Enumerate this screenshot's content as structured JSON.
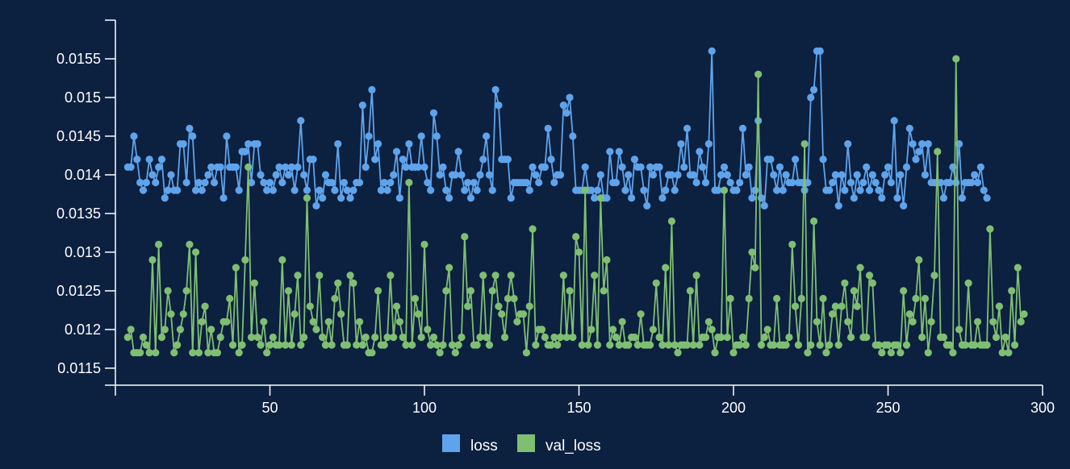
{
  "colors": {
    "background": "#0c2040",
    "axis": "#ffffff",
    "loss": "#5ea4ec",
    "val_loss": "#7fbf71"
  },
  "chart_data": {
    "type": "line",
    "markers": true,
    "grid": false,
    "legend_position": "bottom-center",
    "xlim": [
      0,
      300
    ],
    "ylim": [
      0.01135,
      0.016
    ],
    "x_ticks": [
      50,
      100,
      150,
      200,
      250,
      300
    ],
    "x_tick_labels": [
      "50",
      "100",
      "150",
      "200",
      "250",
      "300"
    ],
    "y_ticks": [
      0.0115,
      0.012,
      0.0125,
      0.013,
      0.0135,
      0.014,
      0.0145,
      0.015,
      0.0155
    ],
    "y_tick_labels": [
      "0.0115",
      "0.012",
      "0.0125",
      "0.013",
      "0.0135",
      "0.014",
      "0.0145",
      "0.015",
      "0.0155"
    ],
    "x_start": 4,
    "series": [
      {
        "name": "loss",
        "color": "#5ea4ec",
        "values": [
          0.0141,
          0.0141,
          0.0145,
          0.0142,
          0.0139,
          0.0138,
          0.0139,
          0.0142,
          0.014,
          0.0139,
          0.0141,
          0.0142,
          0.0137,
          0.0138,
          0.014,
          0.0138,
          0.0138,
          0.0144,
          0.0144,
          0.0139,
          0.0146,
          0.0145,
          0.0138,
          0.0139,
          0.0138,
          0.0139,
          0.014,
          0.0141,
          0.0139,
          0.0141,
          0.0141,
          0.0137,
          0.0145,
          0.0141,
          0.0141,
          0.0141,
          0.0138,
          0.0143,
          0.0143,
          0.0144,
          0.0139,
          0.0144,
          0.0144,
          0.014,
          0.0139,
          0.0138,
          0.0139,
          0.0138,
          0.014,
          0.0141,
          0.0139,
          0.0141,
          0.014,
          0.0141,
          0.0138,
          0.0141,
          0.0147,
          0.014,
          0.0138,
          0.0142,
          0.0142,
          0.0136,
          0.0138,
          0.0137,
          0.014,
          0.0139,
          0.0139,
          0.0138,
          0.0144,
          0.0137,
          0.0139,
          0.0138,
          0.0137,
          0.0138,
          0.0139,
          0.0139,
          0.0149,
          0.0141,
          0.0145,
          0.0151,
          0.0142,
          0.0144,
          0.0138,
          0.0139,
          0.0138,
          0.0139,
          0.014,
          0.0143,
          0.0137,
          0.0142,
          0.0141,
          0.0144,
          0.0141,
          0.0141,
          0.0141,
          0.0145,
          0.0141,
          0.0139,
          0.0138,
          0.0148,
          0.0145,
          0.014,
          0.0141,
          0.0138,
          0.0137,
          0.014,
          0.014,
          0.0143,
          0.014,
          0.0138,
          0.0139,
          0.0137,
          0.0139,
          0.0138,
          0.014,
          0.0142,
          0.0145,
          0.014,
          0.0138,
          0.0151,
          0.0149,
          0.0142,
          0.0142,
          0.0142,
          0.0137,
          0.0139,
          0.0139,
          0.0139,
          0.0139,
          0.0139,
          0.0138,
          0.0141,
          0.014,
          0.0139,
          0.0141,
          0.0141,
          0.0146,
          0.0142,
          0.0139,
          0.014,
          0.014,
          0.0149,
          0.0148,
          0.015,
          0.0145,
          0.0138,
          0.0138,
          0.0138,
          0.0141,
          0.0138,
          0.0138,
          0.0137,
          0.0138,
          0.014,
          0.0137,
          0.0137,
          0.0143,
          0.0139,
          0.0139,
          0.0143,
          0.0141,
          0.0138,
          0.014,
          0.0137,
          0.0142,
          0.0141,
          0.0141,
          0.0138,
          0.0136,
          0.0141,
          0.014,
          0.0141,
          0.0141,
          0.0137,
          0.0138,
          0.014,
          0.014,
          0.0138,
          0.014,
          0.0144,
          0.0141,
          0.0146,
          0.014,
          0.014,
          0.0139,
          0.0143,
          0.0141,
          0.0139,
          0.0144,
          0.0156,
          0.0138,
          0.0138,
          0.014,
          0.0141,
          0.014,
          0.0139,
          0.0138,
          0.0138,
          0.0139,
          0.0146,
          0.014,
          0.0141,
          0.0137,
          0.0138,
          0.0147,
          0.0137,
          0.0136,
          0.0142,
          0.0142,
          0.014,
          0.0138,
          0.0141,
          0.0138,
          0.014,
          0.0139,
          0.0139,
          0.0142,
          0.0139,
          0.0139,
          0.0138,
          0.0139,
          0.015,
          0.0151,
          0.0156,
          0.0156,
          0.0142,
          0.0138,
          0.0138,
          0.0139,
          0.014,
          0.0136,
          0.014,
          0.0138,
          0.0144,
          0.0139,
          0.0137,
          0.014,
          0.0138,
          0.0139,
          0.0141,
          0.0138,
          0.014,
          0.0139,
          0.0138,
          0.0137,
          0.014,
          0.0141,
          0.0139,
          0.0147,
          0.0137,
          0.014,
          0.0136,
          0.0141,
          0.0146,
          0.0144,
          0.0142,
          0.0143,
          0.0144,
          0.014,
          0.0144,
          0.0139,
          0.0139,
          0.0139,
          0.0139,
          0.0137,
          0.0139,
          0.0139,
          0.0141,
          0.0139,
          0.0144,
          0.0137,
          0.0139,
          0.0139,
          0.0139,
          0.014,
          0.0139,
          0.0141,
          0.0138,
          0.0137
        ]
      },
      {
        "name": "val_loss",
        "color": "#7fbf71",
        "values": [
          0.0119,
          0.012,
          0.0117,
          0.0117,
          0.0117,
          0.0119,
          0.0118,
          0.0117,
          0.0129,
          0.0117,
          0.0131,
          0.0119,
          0.012,
          0.0125,
          0.0122,
          0.0117,
          0.0118,
          0.012,
          0.0122,
          0.0125,
          0.0131,
          0.0117,
          0.013,
          0.0117,
          0.0121,
          0.0123,
          0.0117,
          0.012,
          0.0117,
          0.0117,
          0.0119,
          0.0121,
          0.0121,
          0.0124,
          0.0118,
          0.0128,
          0.0117,
          0.0118,
          0.0129,
          0.0141,
          0.0119,
          0.0126,
          0.0119,
          0.0118,
          0.0121,
          0.0117,
          0.0118,
          0.0119,
          0.0118,
          0.0118,
          0.0129,
          0.0118,
          0.0125,
          0.0118,
          0.0122,
          0.0127,
          0.0118,
          0.0119,
          0.0137,
          0.0123,
          0.0121,
          0.012,
          0.0127,
          0.0119,
          0.0118,
          0.0121,
          0.0118,
          0.0124,
          0.0126,
          0.0122,
          0.0118,
          0.0118,
          0.0127,
          0.0126,
          0.0118,
          0.0121,
          0.0118,
          0.0119,
          0.0117,
          0.0117,
          0.0119,
          0.0125,
          0.0118,
          0.0118,
          0.0119,
          0.0127,
          0.0119,
          0.0123,
          0.0121,
          0.0119,
          0.0118,
          0.0139,
          0.0118,
          0.0124,
          0.0122,
          0.0119,
          0.0131,
          0.012,
          0.0118,
          0.0119,
          0.0118,
          0.0117,
          0.0118,
          0.0125,
          0.0128,
          0.0118,
          0.0117,
          0.0118,
          0.0119,
          0.0132,
          0.0123,
          0.0125,
          0.0118,
          0.0118,
          0.0119,
          0.0127,
          0.0119,
          0.0118,
          0.0125,
          0.0127,
          0.0123,
          0.0122,
          0.0119,
          0.0124,
          0.0127,
          0.0124,
          0.0121,
          0.0122,
          0.0122,
          0.0117,
          0.0123,
          0.0133,
          0.0118,
          0.012,
          0.012,
          0.0119,
          0.0118,
          0.0118,
          0.0119,
          0.0118,
          0.0119,
          0.0127,
          0.0119,
          0.0125,
          0.0119,
          0.0132,
          0.013,
          0.0118,
          0.0138,
          0.0118,
          0.012,
          0.0127,
          0.0118,
          0.0137,
          0.0125,
          0.0129,
          0.0118,
          0.012,
          0.0119,
          0.0118,
          0.0121,
          0.0118,
          0.0118,
          0.0119,
          0.0119,
          0.0118,
          0.0122,
          0.0118,
          0.0118,
          0.0118,
          0.012,
          0.0126,
          0.0119,
          0.0118,
          0.0128,
          0.0118,
          0.0134,
          0.0118,
          0.0117,
          0.0118,
          0.0118,
          0.0118,
          0.0125,
          0.0118,
          0.0127,
          0.0118,
          0.0119,
          0.0119,
          0.0121,
          0.012,
          0.0117,
          0.0119,
          0.0119,
          0.0138,
          0.0119,
          0.0124,
          0.0117,
          0.0118,
          0.0118,
          0.0119,
          0.0118,
          0.0124,
          0.013,
          0.0128,
          0.0153,
          0.0118,
          0.0119,
          0.012,
          0.0118,
          0.0118,
          0.0124,
          0.0118,
          0.0118,
          0.0118,
          0.0119,
          0.0131,
          0.0123,
          0.0118,
          0.0124,
          0.0144,
          0.0117,
          0.0118,
          0.0134,
          0.0121,
          0.0118,
          0.0124,
          0.0117,
          0.0118,
          0.0122,
          0.0123,
          0.0118,
          0.0123,
          0.0126,
          0.0121,
          0.0119,
          0.0125,
          0.0123,
          0.0128,
          0.0119,
          0.0119,
          0.0127,
          0.0126,
          0.0118,
          0.0118,
          0.0117,
          0.0118,
          0.0118,
          0.0117,
          0.0118,
          0.0118,
          0.0117,
          0.0125,
          0.0118,
          0.0122,
          0.0121,
          0.0124,
          0.0129,
          0.0119,
          0.0124,
          0.0117,
          0.0121,
          0.0127,
          0.0143,
          0.0119,
          0.0119,
          0.0118,
          0.0118,
          0.0117,
          0.0155,
          0.012,
          0.0118,
          0.0118,
          0.0126,
          0.0118,
          0.0118,
          0.0121,
          0.0118,
          0.0118,
          0.0118,
          0.0133,
          0.0121,
          0.0119,
          0.0123,
          0.0117,
          0.0119,
          0.0117,
          0.0125,
          0.0118,
          0.0128,
          0.0121,
          0.0122
        ]
      }
    ]
  }
}
